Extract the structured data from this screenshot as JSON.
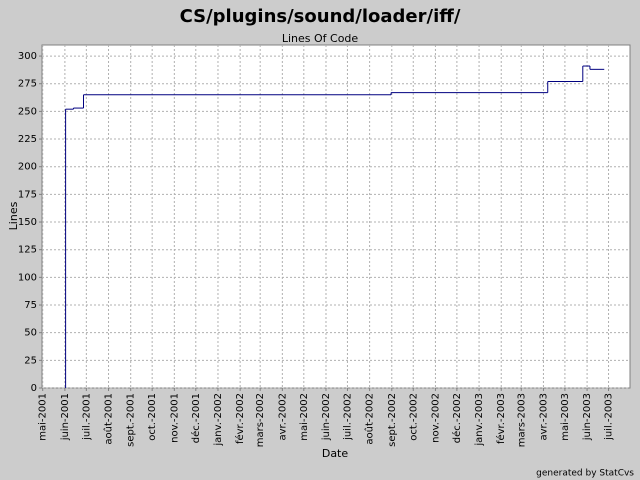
{
  "chart_data": {
    "type": "step-line",
    "title": "CS/plugins/sound/loader/iff/",
    "subtitle": "Lines Of Code",
    "y_label": "Lines",
    "x_label": "Date",
    "footer": "generated by StatCvs",
    "series": [
      {
        "name": "Lines Of Code",
        "color": "#000080",
        "x": [
          "2001-06-02",
          "2001-06-02",
          "2001-06-13",
          "2001-06-27",
          "2002-08-31",
          "2003-04-07",
          "2003-05-26",
          "2003-06-05",
          "2003-06-25"
        ],
        "values": [
          0,
          252,
          253,
          265,
          267,
          277,
          291,
          288,
          288
        ]
      }
    ],
    "ylim": [
      0,
      310
    ],
    "yticks": [
      0,
      25,
      50,
      75,
      100,
      125,
      150,
      175,
      200,
      225,
      250,
      275,
      300
    ],
    "xlim": [
      "2001-04-30",
      "2003-07-31"
    ],
    "xticks": [
      {
        "value": "2001-05-01",
        "label": "mai-2001"
      },
      {
        "value": "2001-06-01",
        "label": "juin-2001"
      },
      {
        "value": "2001-07-01",
        "label": "juil.-2001"
      },
      {
        "value": "2001-08-01",
        "label": "août-2001"
      },
      {
        "value": "2001-09-01",
        "label": "sept.-2001"
      },
      {
        "value": "2001-10-01",
        "label": "oct.-2001"
      },
      {
        "value": "2001-11-01",
        "label": "nov.-2001"
      },
      {
        "value": "2001-12-01",
        "label": "déc.-2001"
      },
      {
        "value": "2002-01-01",
        "label": "janv.-2002"
      },
      {
        "value": "2002-02-01",
        "label": "févr.-2002"
      },
      {
        "value": "2002-03-01",
        "label": "mars-2002"
      },
      {
        "value": "2002-04-01",
        "label": "avr.-2002"
      },
      {
        "value": "2002-05-01",
        "label": "mai-2002"
      },
      {
        "value": "2002-06-01",
        "label": "juin-2002"
      },
      {
        "value": "2002-07-01",
        "label": "juil.-2002"
      },
      {
        "value": "2002-08-01",
        "label": "août-2002"
      },
      {
        "value": "2002-09-01",
        "label": "sept.-2002"
      },
      {
        "value": "2002-10-01",
        "label": "oct.-2002"
      },
      {
        "value": "2002-11-01",
        "label": "nov.-2002"
      },
      {
        "value": "2002-12-01",
        "label": "déc.-2002"
      },
      {
        "value": "2003-01-01",
        "label": "janv.-2003"
      },
      {
        "value": "2003-02-01",
        "label": "févr.-2003"
      },
      {
        "value": "2003-03-01",
        "label": "mars-2003"
      },
      {
        "value": "2003-04-01",
        "label": "avr.-2003"
      },
      {
        "value": "2003-05-01",
        "label": "mai-2003"
      },
      {
        "value": "2003-06-01",
        "label": "juin-2003"
      },
      {
        "value": "2003-07-01",
        "label": "juil.-2003"
      }
    ],
    "grid": true
  }
}
